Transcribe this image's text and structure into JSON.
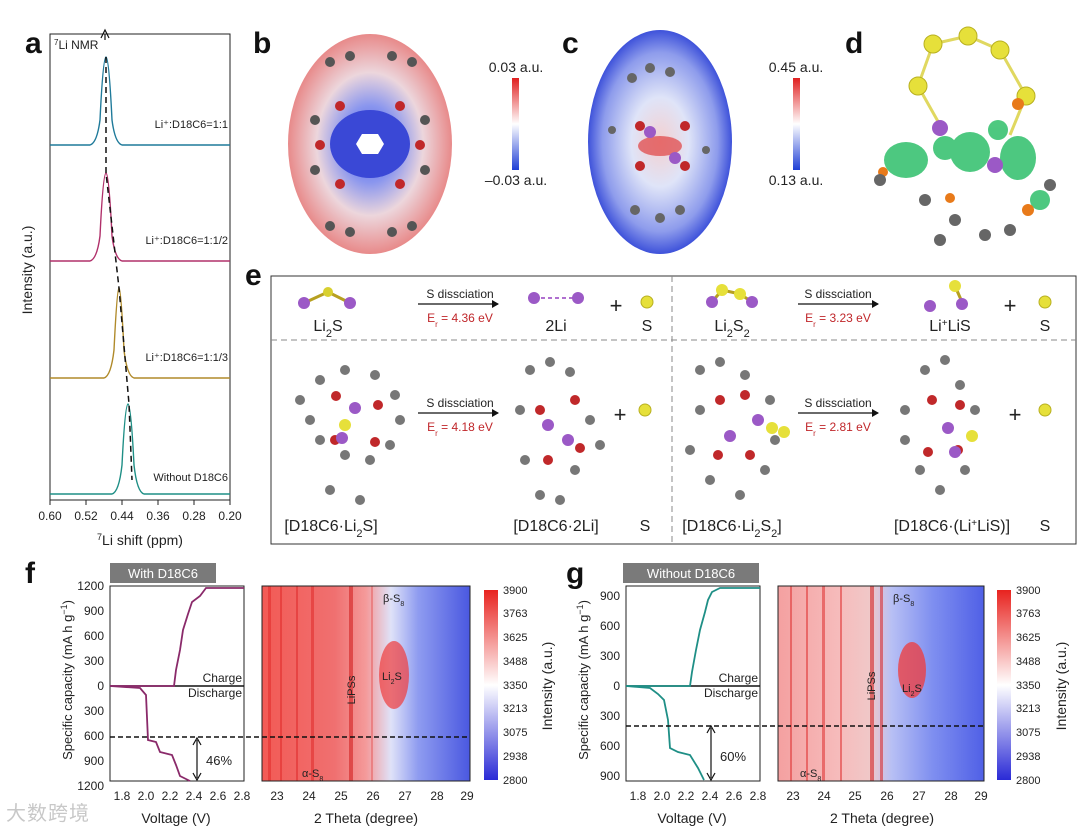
{
  "panel_letters": {
    "a": "a",
    "b": "b",
    "c": "c",
    "d": "d",
    "e": "e",
    "f": "f",
    "g": "g"
  },
  "panel_a": {
    "title": "7Li NMR",
    "title_sup": "7",
    "title_main": "Li NMR",
    "ylabel": "Intensity (a.u.)",
    "xlabel_sup": "7",
    "xlabel_main": "Li shift (ppm)",
    "xticks": [
      "0.60",
      "0.52",
      "0.44",
      "0.36",
      "0.28",
      "0.20"
    ],
    "chart_data": {
      "type": "line",
      "x_range": [
        0.6,
        0.2
      ],
      "xlabel": "7Li shift (ppm)",
      "ylabel": "Intensity (a.u.)",
      "series": [
        {
          "name": "Li+:D18C6=1:1",
          "peak_ppm": 0.49,
          "color": "#1f7a9a"
        },
        {
          "name": "Li+:D18C6=1:1/2",
          "peak_ppm": 0.49,
          "color": "#b0306a"
        },
        {
          "name": "Li+:D18C6=1:1/3",
          "peak_ppm": 0.45,
          "color": "#b08a2a"
        },
        {
          "name": "Without D18C6",
          "peak_ppm": 0.42,
          "color": "#1f8f86"
        }
      ]
    },
    "labels": [
      "Li⁺:D18C6=1:1",
      "Li⁺:D18C6=1:1/2",
      "Li⁺:D18C6=1:1/3",
      "Without D18C6"
    ]
  },
  "panel_b": {
    "cb_max": "0.03 a.u.",
    "cb_min": "–0.03 a.u."
  },
  "panel_c": {
    "cb_max": "0.45 a.u.",
    "cb_min": "0.13 a.u."
  },
  "panel_e": {
    "top_left": {
      "reactant": "Li",
      "reactant_sub": "2",
      "reactant_tail": "S",
      "process": "S dissciation",
      "energy_prefix": "E",
      "energy_sub": "r",
      "energy_value": " = 4.36 eV",
      "product": "2Li",
      "plus": "+",
      "s": "S"
    },
    "top_right": {
      "reactant": "Li",
      "reactant_sub": "2",
      "reactant_tail": "S",
      "reactant_sub2": "2",
      "process": "S dissciation",
      "energy_prefix": "E",
      "energy_sub": "r",
      "energy_value": " = 3.23 eV",
      "product_a": "Li",
      "product_sup": "+",
      "product_b": "LiS",
      "plus": "+",
      "s": "S"
    },
    "bottom_left": {
      "reactant": "[D18C6·Li",
      "reactant_sub": "2",
      "reactant_tail": "S]",
      "process": "S dissciation",
      "energy_prefix": "E",
      "energy_sub": "r",
      "energy_value": " = 4.18 eV",
      "product": "[D18C6·2Li]",
      "plus": "+",
      "s": "S"
    },
    "bottom_right": {
      "reactant": "[D18C6·Li",
      "reactant_sub": "2",
      "reactant_mid": "S",
      "reactant_sub2": "2",
      "reactant_tail": "]",
      "process": "S dissciation",
      "energy_prefix": "E",
      "energy_sub": "r",
      "energy_value": " = 2.81 eV",
      "product_a": "[D18C6·(Li",
      "product_sup": "+",
      "product_b": "LiS)]",
      "plus": "+",
      "s": "S"
    }
  },
  "panel_f": {
    "header": "With D18C6",
    "ylabel_main": "Specific capacity (mA h g",
    "ylabel_sup": "−1",
    "ylabel_end": ")",
    "yticks_charge": [
      "0",
      "300",
      "600",
      "900",
      "1200"
    ],
    "yticks_discharge": [
      "0",
      "300",
      "600",
      "900",
      "1200"
    ],
    "xticks": [
      "1.8",
      "2.0",
      "2.2",
      "2.4",
      "2.6",
      "2.8"
    ],
    "xlabel": "Voltage (V)",
    "charge": "Charge",
    "discharge": "Discharge",
    "percent": "46%",
    "map_xticks": [
      "23",
      "24",
      "25",
      "26",
      "27",
      "28",
      "29"
    ],
    "map_xlabel": "2 Theta (degree)",
    "beta": "β-S",
    "beta_sub": "8",
    "alpha": "α-S",
    "alpha_sub": "8",
    "lipss": "LiPSs",
    "li2s": "Li",
    "li2s_sub": "2",
    "li2s_tail": "S",
    "cb_ticks": [
      "3900",
      "3763",
      "3625",
      "3488",
      "3350",
      "3213",
      "3075",
      "2938",
      "2800"
    ],
    "cb_label": "Intensity (a.u.)",
    "chart_data": {
      "type": "line",
      "xlabel": "Voltage (V)",
      "ylabel": "Specific capacity (mA h g−1)",
      "discharge_capacity_max": 1200,
      "charge_capacity_max": 1200,
      "first_plateau_fraction": "46%"
    }
  },
  "panel_g": {
    "header": "Without D18C6",
    "ylabel_main": "Specific capacity (mA h g",
    "ylabel_sup": "−1",
    "ylabel_end": ")",
    "yticks_charge": [
      "0",
      "300",
      "600",
      "900"
    ],
    "yticks_discharge": [
      "0",
      "300",
      "600",
      "900"
    ],
    "xticks": [
      "1.8",
      "2.0",
      "2.2",
      "2.4",
      "2.6",
      "2.8"
    ],
    "xlabel": "Voltage (V)",
    "charge": "Charge",
    "discharge": "Discharge",
    "percent": "60%",
    "map_xticks": [
      "23",
      "24",
      "25",
      "26",
      "27",
      "28",
      "29"
    ],
    "map_xlabel": "2 Theta (degree)",
    "beta": "β-S",
    "beta_sub": "8",
    "alpha": "α-S",
    "alpha_sub": "8",
    "lipss": "LiPSs",
    "li2s": "Li",
    "li2s_sub": "2",
    "li2s_tail": "S",
    "cb_ticks": [
      "3900",
      "3763",
      "3625",
      "3488",
      "3350",
      "3213",
      "3075",
      "2938",
      "2800"
    ],
    "cb_label": "Intensity (a.u.)",
    "chart_data": {
      "type": "line",
      "xlabel": "Voltage (V)",
      "ylabel": "Specific capacity (mA h g−1)",
      "discharge_capacity_max": 1000,
      "charge_capacity_max": 1000,
      "first_plateau_fraction": "60%"
    }
  },
  "watermark": "大数跨境",
  "colors": {
    "red": "#e8231f",
    "blue": "#2a2ad6",
    "teal": "#1f8f86",
    "magenta": "#8a2a6a",
    "header_gray": "#7a7a7a",
    "energy_red": "#c0262a"
  }
}
